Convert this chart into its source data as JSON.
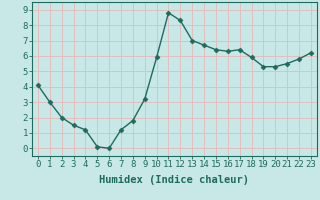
{
  "x": [
    0,
    1,
    2,
    3,
    4,
    5,
    6,
    7,
    8,
    9,
    10,
    11,
    12,
    13,
    14,
    15,
    16,
    17,
    18,
    19,
    20,
    21,
    22,
    23
  ],
  "y": [
    4.1,
    3.0,
    2.0,
    1.5,
    1.2,
    0.1,
    0.0,
    1.2,
    1.8,
    3.2,
    5.9,
    8.8,
    8.3,
    7.0,
    6.7,
    6.4,
    6.3,
    6.4,
    5.9,
    5.3,
    5.3,
    5.5,
    5.8,
    6.2
  ],
  "line_color": "#1e6b5e",
  "marker": "D",
  "markersize": 2.5,
  "linewidth": 1.0,
  "bg_color": "#c8e8e8",
  "grid_color": "#e8b8b8",
  "xlabel": "Humidex (Indice chaleur)",
  "xlim": [
    -0.5,
    23.5
  ],
  "ylim": [
    -0.5,
    9.5
  ],
  "xtick_labels": [
    "0",
    "1",
    "2",
    "3",
    "4",
    "5",
    "6",
    "7",
    "8",
    "9",
    "10",
    "11",
    "12",
    "13",
    "14",
    "15",
    "16",
    "17",
    "18",
    "19",
    "20",
    "21",
    "22",
    "23"
  ],
  "ytick_values": [
    0,
    1,
    2,
    3,
    4,
    5,
    6,
    7,
    8,
    9
  ],
  "xlabel_fontsize": 7.5,
  "tick_fontsize": 6.5,
  "axis_color": "#1e6b5e"
}
